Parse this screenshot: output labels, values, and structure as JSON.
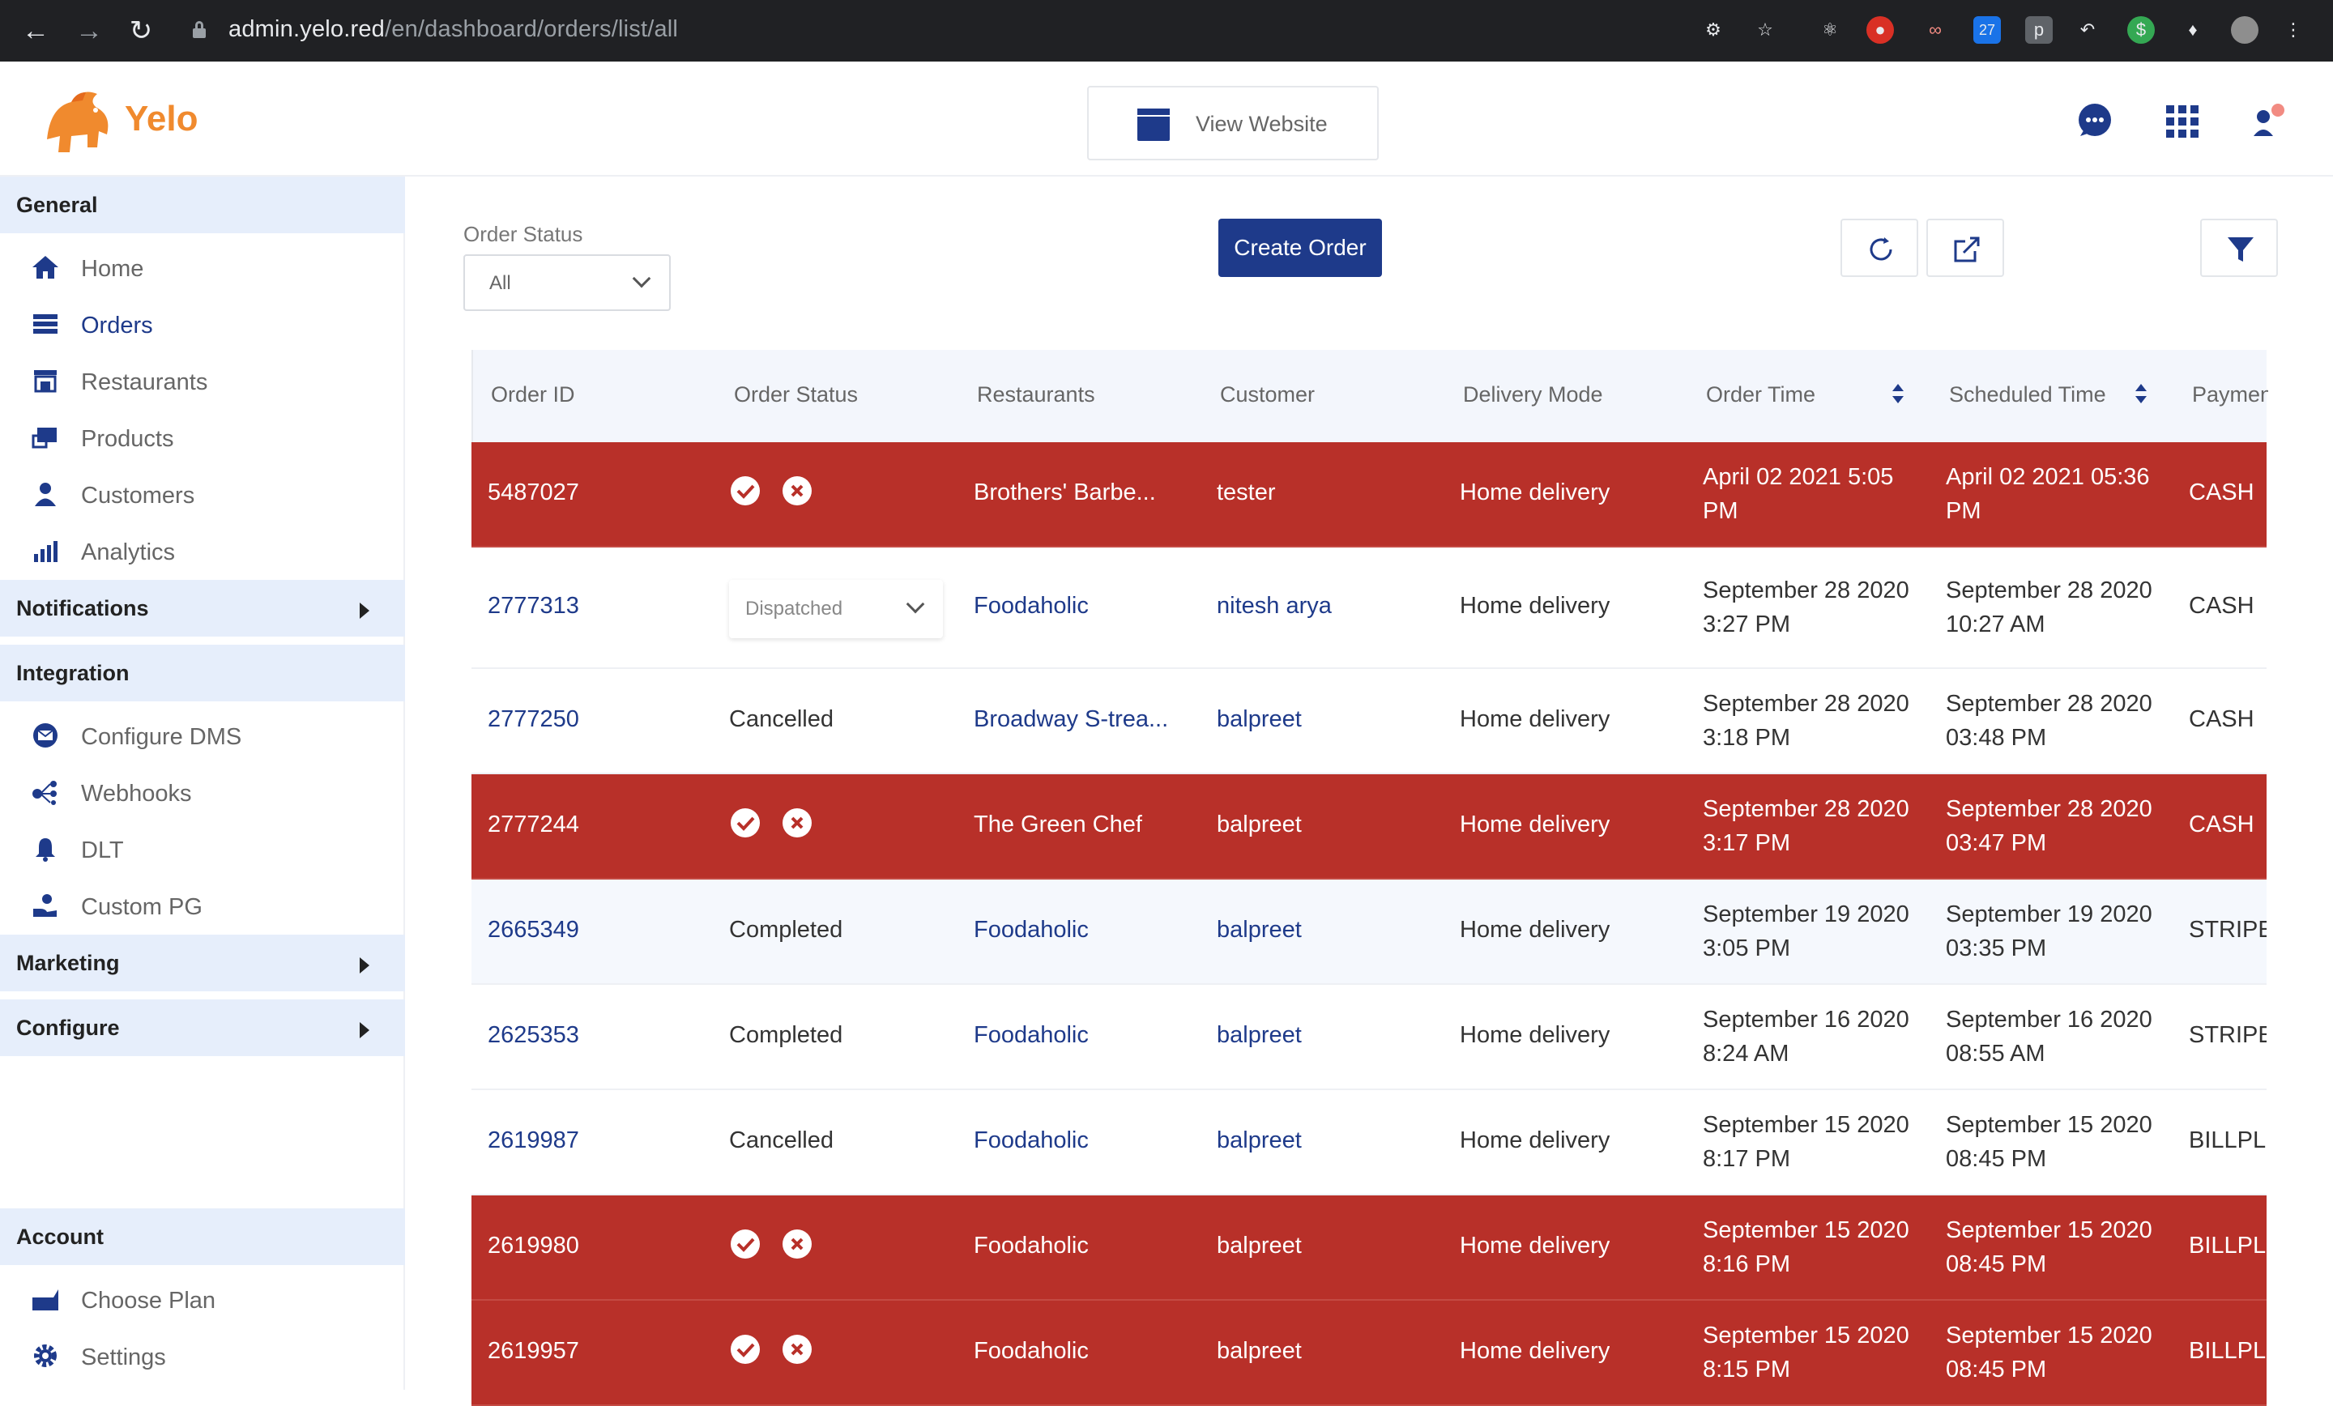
{
  "browser": {
    "url_host": "admin.yelo.red",
    "url_path": "/en/dashboard/orders/list/all"
  },
  "header": {
    "brand": "Yelo",
    "view_website_label": "View Website"
  },
  "sidebar": {
    "general_title": "General",
    "general_items": [
      {
        "label": "Home",
        "icon": "home-icon"
      },
      {
        "label": "Orders",
        "icon": "orders-icon"
      },
      {
        "label": "Restaurants",
        "icon": "restaurant-icon"
      },
      {
        "label": "Products",
        "icon": "products-icon"
      },
      {
        "label": "Customers",
        "icon": "customer-icon"
      },
      {
        "label": "Analytics",
        "icon": "analytics-icon"
      }
    ],
    "notifications_title": "Notifications",
    "integration_title": "Integration",
    "integration_items": [
      {
        "label": "Configure DMS",
        "icon": "mail-icon"
      },
      {
        "label": "Webhooks",
        "icon": "webhook-icon"
      },
      {
        "label": "DLT",
        "icon": "bell-icon"
      },
      {
        "label": "Custom PG",
        "icon": "payment-icon"
      }
    ],
    "marketing_title": "Marketing",
    "configure_title": "Configure",
    "account_title": "Account",
    "account_items": [
      {
        "label": "Choose Plan",
        "icon": "plan-icon"
      },
      {
        "label": "Settings",
        "icon": "gear-icon"
      }
    ]
  },
  "filters": {
    "order_status_label": "Order Status",
    "order_status_value": "All"
  },
  "toolbar": {
    "create_order_label": "Create Order"
  },
  "table": {
    "columns": [
      "Order ID",
      "Order Status",
      "Restaurants",
      "Customer",
      "Delivery Mode",
      "Order Time",
      "Scheduled Time",
      "Paymen"
    ],
    "rows": [
      {
        "id": "5487027",
        "status": "",
        "restaurant": "Brothers' Barbe...",
        "customer": "tester",
        "mode": "Home delivery",
        "order_time_1": "April 02 2021 5:05",
        "order_time_2": "PM",
        "sched_1": "April 02 2021 05:36",
        "sched_2": "PM",
        "payment": "CASH"
      },
      {
        "id": "2777313",
        "status": "Dispatched",
        "restaurant": "Foodaholic",
        "customer": "nitesh arya",
        "mode": "Home delivery",
        "order_time_1": "September 28 2020",
        "order_time_2": "3:27 PM",
        "sched_1": "September 28 2020",
        "sched_2": "10:27 AM",
        "payment": "CASH"
      },
      {
        "id": "2777250",
        "status": "Cancelled",
        "restaurant": "Broadway S-trea...",
        "customer": "balpreet",
        "mode": "Home delivery",
        "order_time_1": "September 28 2020",
        "order_time_2": "3:18 PM",
        "sched_1": "September 28 2020",
        "sched_2": "03:48 PM",
        "payment": "CASH"
      },
      {
        "id": "2777244",
        "status": "",
        "restaurant": "The Green Chef",
        "customer": "balpreet",
        "mode": "Home delivery",
        "order_time_1": "September 28 2020",
        "order_time_2": "3:17 PM",
        "sched_1": "September 28 2020",
        "sched_2": "03:47 PM",
        "payment": "CASH"
      },
      {
        "id": "2665349",
        "status": "Completed",
        "restaurant": "Foodaholic",
        "customer": "balpreet",
        "mode": "Home delivery",
        "order_time_1": "September 19 2020",
        "order_time_2": "3:05 PM",
        "sched_1": "September 19 2020",
        "sched_2": "03:35 PM",
        "payment": "STRIPE"
      },
      {
        "id": "2625353",
        "status": "Completed",
        "restaurant": "Foodaholic",
        "customer": "balpreet",
        "mode": "Home delivery",
        "order_time_1": "September 16 2020",
        "order_time_2": "8:24 AM",
        "sched_1": "September 16 2020",
        "sched_2": "08:55 AM",
        "payment": "STRIPE"
      },
      {
        "id": "2619987",
        "status": "Cancelled",
        "restaurant": "Foodaholic",
        "customer": "balpreet",
        "mode": "Home delivery",
        "order_time_1": "September 15 2020",
        "order_time_2": "8:17 PM",
        "sched_1": "September 15 2020",
        "sched_2": "08:45 PM",
        "payment": "BILLPLZ"
      },
      {
        "id": "2619980",
        "status": "",
        "restaurant": "Foodaholic",
        "customer": "balpreet",
        "mode": "Home delivery",
        "order_time_1": "September 15 2020",
        "order_time_2": "8:16 PM",
        "sched_1": "September 15 2020",
        "sched_2": "08:45 PM",
        "payment": "BILLPLZ"
      },
      {
        "id": "2619957",
        "status": "",
        "restaurant": "Foodaholic",
        "customer": "balpreet",
        "mode": "Home delivery",
        "order_time_1": "September 15 2020",
        "order_time_2": "8:15 PM",
        "sched_1": "September 15 2020",
        "sched_2": "08:45 PM",
        "payment": "BILLPLZ"
      }
    ]
  },
  "colors": {
    "brand_blue": "#1e3a8a",
    "alert_red": "#b83029",
    "section_bg": "#e6eefb",
    "brand_orange": "#f08a2e"
  }
}
